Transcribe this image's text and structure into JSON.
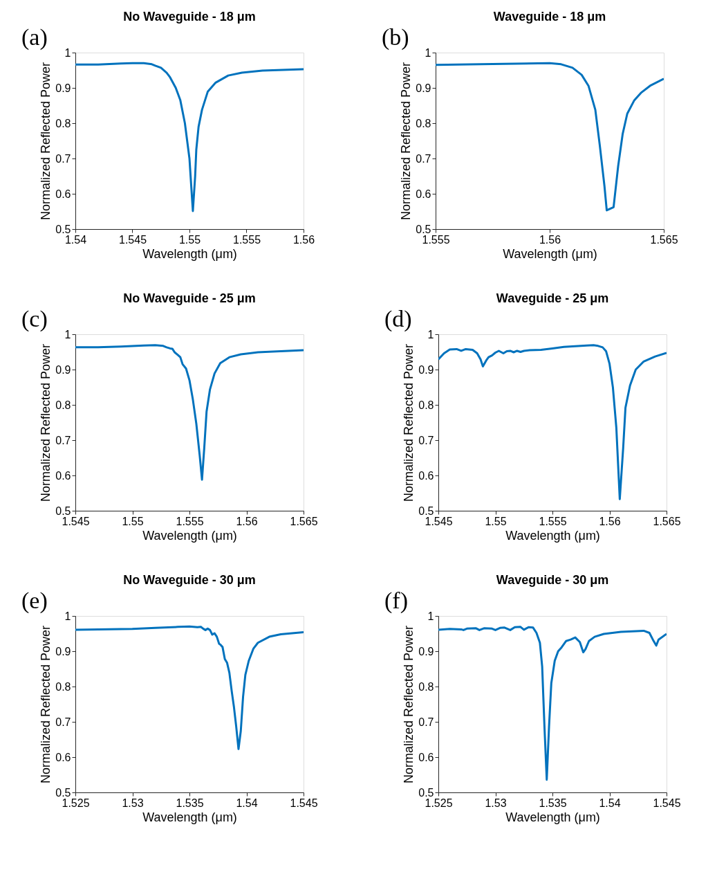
{
  "chart_data": [
    {
      "type": "line",
      "title": "No Waveguide - 18 μm",
      "xlabel": "Wavelength (μm)",
      "ylabel": "Normalized Reflected Power",
      "annotations": [
        "(a)"
      ],
      "xlim": [
        1.54,
        1.56
      ],
      "xticks": [
        1.54,
        1.545,
        1.55,
        1.555,
        1.56
      ],
      "ylim": [
        0.5,
        1
      ],
      "yticks": [
        0.5,
        0.6,
        0.7,
        0.8,
        0.9,
        1
      ],
      "grid": false,
      "line_style": "solid",
      "x": [
        1.54,
        1.542,
        1.544,
        1.545,
        1.546,
        1.5467,
        1.547,
        1.5475,
        1.548,
        1.5483,
        1.5488,
        1.5492,
        1.5496,
        1.55,
        1.5502,
        1.5503,
        1.5505,
        1.5506,
        1.5508,
        1.5511,
        1.5516,
        1.5523,
        1.5534,
        1.5546,
        1.5564,
        1.56
      ],
      "series": [
        {
          "color": "#0072bd",
          "values": [
            0.966,
            0.966,
            0.969,
            0.97,
            0.97,
            0.967,
            0.963,
            0.957,
            0.943,
            0.93,
            0.9,
            0.865,
            0.8,
            0.7,
            0.6,
            0.551,
            0.65,
            0.725,
            0.79,
            0.838,
            0.889,
            0.915,
            0.935,
            0.943,
            0.949,
            0.953
          ]
        }
      ]
    },
    {
      "type": "line",
      "title": "Waveguide - 18 μm",
      "xlabel": "Wavelength (μm)",
      "ylabel": "Normalized Reflected Power",
      "annotations": [
        "(b)"
      ],
      "xlim": [
        1.555,
        1.565
      ],
      "xticks": [
        1.555,
        1.56,
        1.565
      ],
      "ylim": [
        0.5,
        1
      ],
      "yticks": [
        0.5,
        0.6,
        0.7,
        0.8,
        0.9,
        1
      ],
      "grid": false,
      "line_style": "solid",
      "x": [
        1.555,
        1.558,
        1.56,
        1.5605,
        1.561,
        1.5614,
        1.5617,
        1.562,
        1.5622,
        1.5624,
        1.5625,
        1.5628,
        1.563,
        1.5632,
        1.5634,
        1.5637,
        1.564,
        1.5644,
        1.565
      ],
      "series": [
        {
          "color": "#0072bd",
          "values": [
            0.965,
            0.968,
            0.97,
            0.967,
            0.957,
            0.937,
            0.906,
            0.838,
            0.735,
            0.622,
            0.553,
            0.562,
            0.678,
            0.77,
            0.827,
            0.864,
            0.886,
            0.906,
            0.926
          ]
        }
      ]
    },
    {
      "type": "line",
      "title": "No Waveguide - 25 μm",
      "xlabel": "Wavelength (μm)",
      "ylabel": "Normalized Reflected Power",
      "annotations": [
        "(c)"
      ],
      "xlim": [
        1.545,
        1.565
      ],
      "xticks": [
        1.545,
        1.55,
        1.555,
        1.56,
        1.565
      ],
      "ylim": [
        0.5,
        1
      ],
      "yticks": [
        0.5,
        0.6,
        0.7,
        0.8,
        0.9,
        1
      ],
      "grid": false,
      "line_style": "solid",
      "x": [
        1.545,
        1.547,
        1.549,
        1.551,
        1.552,
        1.5527,
        1.553,
        1.5533,
        1.5535,
        1.5537,
        1.554,
        1.5542,
        1.5544,
        1.5547,
        1.555,
        1.5553,
        1.5556,
        1.5559,
        1.5561,
        1.5563,
        1.5565,
        1.5568,
        1.5572,
        1.5577,
        1.5585,
        1.5595,
        1.561,
        1.565
      ],
      "series": [
        {
          "color": "#0072bd",
          "values": [
            0.963,
            0.963,
            0.965,
            0.968,
            0.969,
            0.967,
            0.963,
            0.96,
            0.959,
            0.949,
            0.941,
            0.935,
            0.915,
            0.903,
            0.87,
            0.815,
            0.747,
            0.656,
            0.588,
            0.679,
            0.781,
            0.844,
            0.889,
            0.918,
            0.935,
            0.943,
            0.949,
            0.955
          ]
        }
      ]
    },
    {
      "type": "line",
      "title": "Waveguide - 25 μm",
      "xlabel": "Wavelength (μm)",
      "ylabel": "Normalized Reflected Power",
      "annotations": [
        "(d)"
      ],
      "xlim": [
        1.545,
        1.565
      ],
      "xticks": [
        1.545,
        1.55,
        1.555,
        1.56,
        1.565
      ],
      "ylim": [
        0.5,
        1
      ],
      "yticks": [
        0.5,
        0.6,
        0.7,
        0.8,
        0.9,
        1
      ],
      "grid": false,
      "line_style": "solid",
      "x": [
        1.545,
        1.5455,
        1.546,
        1.5466,
        1.547,
        1.5474,
        1.548,
        1.5484,
        1.5487,
        1.5489,
        1.5492,
        1.5494,
        1.5497,
        1.55,
        1.5503,
        1.5507,
        1.551,
        1.5513,
        1.5516,
        1.5519,
        1.5522,
        1.5525,
        1.553,
        1.554,
        1.555,
        1.556,
        1.557,
        1.558,
        1.5586,
        1.559,
        1.5594,
        1.5597,
        1.56,
        1.5603,
        1.5606,
        1.5609,
        1.5612,
        1.5614,
        1.5618,
        1.5623,
        1.563,
        1.564,
        1.565
      ],
      "series": [
        {
          "color": "#0072bd",
          "values": [
            0.929,
            0.946,
            0.957,
            0.958,
            0.953,
            0.958,
            0.956,
            0.946,
            0.929,
            0.909,
            0.926,
            0.935,
            0.94,
            0.948,
            0.953,
            0.946,
            0.952,
            0.953,
            0.949,
            0.953,
            0.95,
            0.953,
            0.955,
            0.956,
            0.96,
            0.964,
            0.966,
            0.968,
            0.969,
            0.967,
            0.963,
            0.952,
            0.917,
            0.849,
            0.735,
            0.533,
            0.678,
            0.792,
            0.855,
            0.9,
            0.923,
            0.937,
            0.947
          ]
        }
      ]
    },
    {
      "type": "line",
      "title": "No Waveguide - 30 μm",
      "xlabel": "Wavelength (μm)",
      "ylabel": "Normalized Reflected Power",
      "annotations": [
        "(e)"
      ],
      "xlim": [
        1.525,
        1.545
      ],
      "xticks": [
        1.525,
        1.53,
        1.535,
        1.54,
        1.545
      ],
      "ylim": [
        0.5,
        1
      ],
      "yticks": [
        0.5,
        0.6,
        0.7,
        0.8,
        0.9,
        1
      ],
      "grid": false,
      "line_style": "solid",
      "x": [
        1.525,
        1.53,
        1.532,
        1.534,
        1.535,
        1.5357,
        1.536,
        1.5362,
        1.5364,
        1.5366,
        1.5368,
        1.537,
        1.5372,
        1.5374,
        1.5376,
        1.5377,
        1.5379,
        1.5381,
        1.5383,
        1.5385,
        1.5387,
        1.5389,
        1.5391,
        1.5393,
        1.5395,
        1.5397,
        1.5399,
        1.5402,
        1.5406,
        1.541,
        1.542,
        1.543,
        1.545
      ],
      "series": [
        {
          "color": "#0072bd",
          "values": [
            0.961,
            0.963,
            0.966,
            0.969,
            0.97,
            0.968,
            0.969,
            0.964,
            0.96,
            0.964,
            0.96,
            0.947,
            0.951,
            0.941,
            0.921,
            0.919,
            0.912,
            0.878,
            0.867,
            0.839,
            0.788,
            0.742,
            0.686,
            0.623,
            0.674,
            0.771,
            0.833,
            0.873,
            0.907,
            0.924,
            0.941,
            0.948,
            0.954
          ]
        }
      ]
    },
    {
      "type": "line",
      "title": "Waveguide - 30 μm",
      "xlabel": "Wavelength (μm)",
      "ylabel": "Normalized Reflected Power",
      "annotations": [
        "(f)"
      ],
      "xlim": [
        1.525,
        1.545
      ],
      "xticks": [
        1.525,
        1.53,
        1.535,
        1.54,
        1.545
      ],
      "ylim": [
        0.5,
        1
      ],
      "yticks": [
        0.5,
        0.6,
        0.7,
        0.8,
        0.9,
        1
      ],
      "grid": false,
      "line_style": "solid",
      "x": [
        1.525,
        1.526,
        1.527,
        1.5272,
        1.5275,
        1.5283,
        1.5286,
        1.529,
        1.5297,
        1.53,
        1.5304,
        1.5308,
        1.5313,
        1.5317,
        1.5322,
        1.5325,
        1.5329,
        1.5333,
        1.5336,
        1.5339,
        1.5341,
        1.5343,
        1.5345,
        1.5347,
        1.5349,
        1.5352,
        1.5355,
        1.5358,
        1.5362,
        1.5366,
        1.537,
        1.5374,
        1.5377,
        1.5379,
        1.5382,
        1.5387,
        1.5395,
        1.541,
        1.543,
        1.5435,
        1.5438,
        1.5441,
        1.5443,
        1.545
      ],
      "series": [
        {
          "color": "#0072bd",
          "values": [
            0.961,
            0.963,
            0.962,
            0.96,
            0.964,
            0.965,
            0.96,
            0.965,
            0.964,
            0.96,
            0.966,
            0.967,
            0.96,
            0.968,
            0.969,
            0.961,
            0.968,
            0.967,
            0.952,
            0.924,
            0.856,
            0.686,
            0.536,
            0.686,
            0.81,
            0.873,
            0.9,
            0.911,
            0.929,
            0.933,
            0.939,
            0.926,
            0.897,
            0.906,
            0.929,
            0.941,
            0.949,
            0.955,
            0.958,
            0.952,
            0.933,
            0.916,
            0.933,
            0.949
          ]
        }
      ]
    }
  ]
}
